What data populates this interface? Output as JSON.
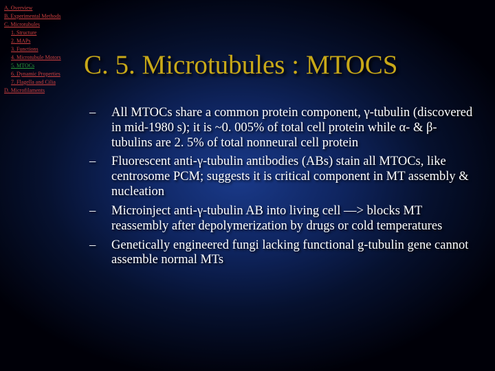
{
  "sidebar": {
    "items": [
      {
        "label": "A. Overview",
        "level": 1,
        "color": "red"
      },
      {
        "label": "B. Experimental Methods",
        "level": 1,
        "color": "red"
      },
      {
        "label": "C. Microtubules",
        "level": 1,
        "color": "red"
      },
      {
        "label": "1. Structure",
        "level": 2,
        "color": "red"
      },
      {
        "label": "2. MAPs",
        "level": 2,
        "color": "red"
      },
      {
        "label": "3. Functions",
        "level": 2,
        "color": "red"
      },
      {
        "label": "4. Microtubule Motors",
        "level": 2,
        "color": "red"
      },
      {
        "label": "5. MTOCs",
        "level": 2,
        "color": "green"
      },
      {
        "label": "6. Dynamic Properties",
        "level": 2,
        "color": "red"
      },
      {
        "label": "7. Flagella and Cilia",
        "level": 2,
        "color": "red"
      },
      {
        "label": "D. Microfilaments",
        "level": 1,
        "color": "red"
      }
    ]
  },
  "title": "C. 5. Microtubules : MTOCS",
  "bullets": [
    "All MTOCs share a common protein component, γ-tubulin (discovered in mid-1980 s); it is ~0. 005% of total cell protein while α- & β-tubulins are 2. 5% of total nonneural cell protein",
    "Fluorescent anti-γ-tubulin antibodies (ABs) stain all MTOCs, like centrosome PCM; suggests it is critical component in MT assembly & nucleation",
    "Microinject anti-γ-tubulin AB into living cell —> blocks MT reassembly after depolymerization by drugs or cold temperatures",
    "Genetically engineered fungi lacking functional g-tubulin gene cannot assemble normal MTs"
  ],
  "colors": {
    "title": "#c8a818",
    "body_text": "#ffffff",
    "nav_red": "#d04040",
    "nav_green": "#2a9a3a",
    "bg_center": "#1a3a8a",
    "bg_edge": "#000008"
  }
}
